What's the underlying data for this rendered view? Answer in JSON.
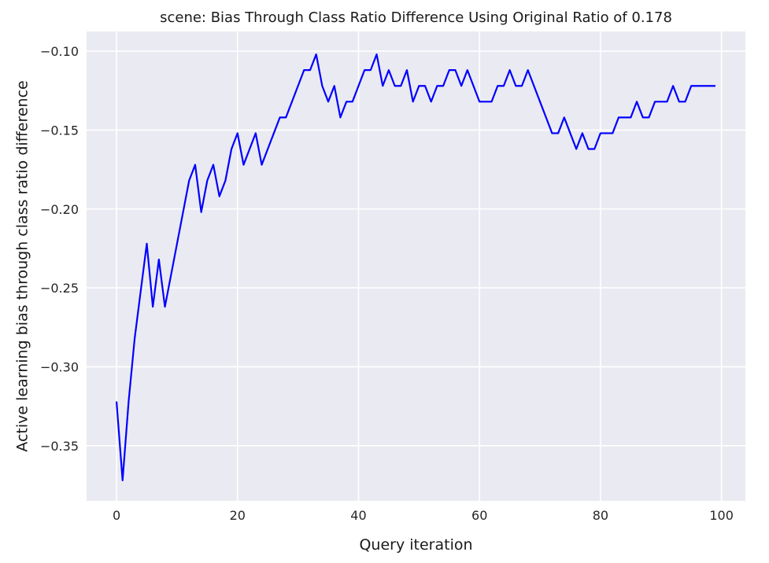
{
  "chart_data": {
    "type": "line",
    "title": "scene: Bias Through Class Ratio Difference Using Original Ratio of 0.178",
    "xlabel": "Query iteration",
    "ylabel": "Active learning bias through class ratio difference",
    "xlim": [
      -4.95,
      103.95
    ],
    "ylim": [
      -0.385,
      -0.0875
    ],
    "xticks": [
      0,
      20,
      40,
      60,
      80,
      100
    ],
    "yticks": [
      -0.35,
      -0.3,
      -0.25,
      -0.2,
      -0.15,
      -0.1
    ],
    "xtick_labels": [
      "0",
      "20",
      "40",
      "60",
      "80",
      "100"
    ],
    "ytick_labels": [
      "−0.35",
      "−0.30",
      "−0.25",
      "−0.20",
      "−0.15",
      "−0.10"
    ],
    "grid": true,
    "background_color": "#eaeaf2",
    "series": [
      {
        "color": "#0000ff",
        "x": [
          0,
          1,
          2,
          3,
          4,
          5,
          6,
          7,
          8,
          9,
          10,
          11,
          12,
          13,
          14,
          15,
          16,
          17,
          18,
          19,
          20,
          21,
          22,
          23,
          24,
          25,
          26,
          27,
          28,
          29,
          30,
          31,
          32,
          33,
          34,
          35,
          36,
          37,
          38,
          39,
          40,
          41,
          42,
          43,
          44,
          45,
          46,
          47,
          48,
          49,
          50,
          51,
          52,
          53,
          54,
          55,
          56,
          57,
          58,
          59,
          60,
          61,
          62,
          63,
          64,
          65,
          66,
          67,
          68,
          69,
          70,
          71,
          72,
          73,
          74,
          75,
          76,
          77,
          78,
          79,
          80,
          81,
          82,
          83,
          84,
          85,
          86,
          87,
          88,
          89,
          90,
          91,
          92,
          93,
          94,
          95,
          96,
          97,
          98,
          99
        ],
        "y": [
          -0.322,
          -0.372,
          -0.322,
          -0.282,
          -0.252,
          -0.222,
          -0.262,
          -0.232,
          -0.262,
          -0.242,
          -0.222,
          -0.202,
          -0.182,
          -0.172,
          -0.202,
          -0.182,
          -0.172,
          -0.192,
          -0.182,
          -0.162,
          -0.152,
          -0.172,
          -0.162,
          -0.152,
          -0.172,
          -0.162,
          -0.152,
          -0.142,
          -0.142,
          -0.132,
          -0.122,
          -0.112,
          -0.112,
          -0.102,
          -0.122,
          -0.132,
          -0.122,
          -0.142,
          -0.132,
          -0.132,
          -0.122,
          -0.112,
          -0.112,
          -0.102,
          -0.122,
          -0.112,
          -0.122,
          -0.122,
          -0.112,
          -0.132,
          -0.122,
          -0.122,
          -0.132,
          -0.122,
          -0.122,
          -0.112,
          -0.112,
          -0.122,
          -0.112,
          -0.122,
          -0.132,
          -0.132,
          -0.132,
          -0.122,
          -0.122,
          -0.112,
          -0.122,
          -0.122,
          -0.112,
          -0.122,
          -0.132,
          -0.142,
          -0.152,
          -0.152,
          -0.142,
          -0.152,
          -0.162,
          -0.152,
          -0.162,
          -0.162,
          -0.152,
          -0.152,
          -0.152,
          -0.142,
          -0.142,
          -0.142,
          -0.132,
          -0.142,
          -0.142,
          -0.132,
          -0.132,
          -0.132,
          -0.122,
          -0.132,
          -0.132,
          -0.122,
          -0.122,
          -0.122,
          -0.122,
          -0.122
        ]
      }
    ]
  }
}
